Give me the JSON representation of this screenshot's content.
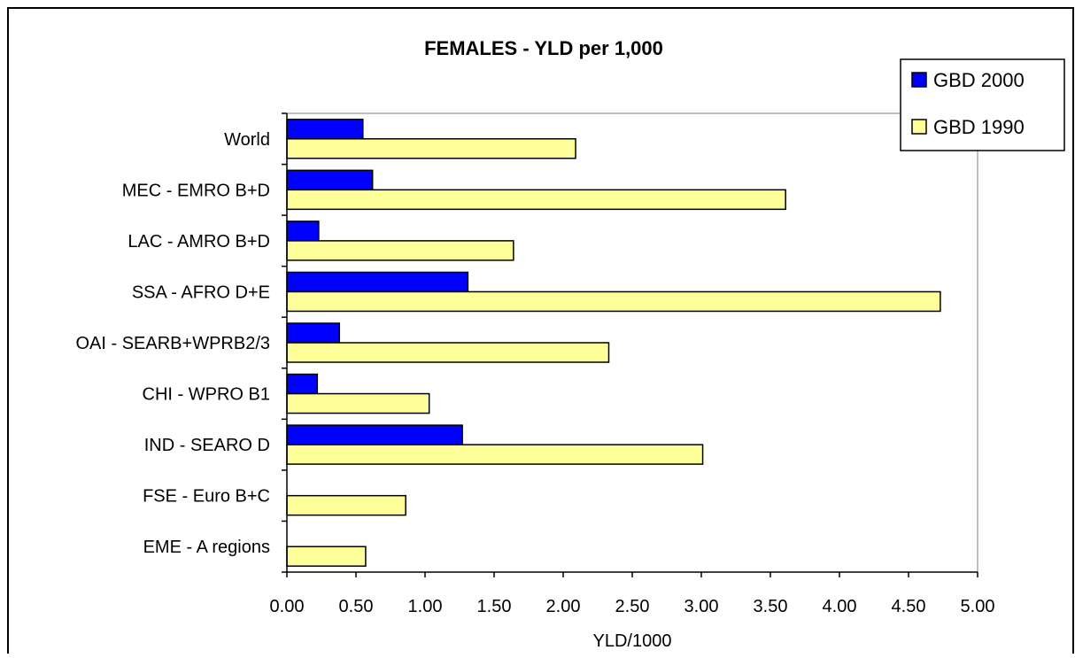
{
  "chart_data": {
    "type": "bar",
    "orientation": "horizontal",
    "title": "FEMALES - YLD per 1,000",
    "xlabel": "YLD/1000",
    "ylabel": "",
    "xlim": [
      0,
      5
    ],
    "x_ticks": [
      "0.00",
      "0.50",
      "1.00",
      "1.50",
      "2.00",
      "2.50",
      "3.00",
      "3.50",
      "4.00",
      "4.50",
      "5.00"
    ],
    "grid": false,
    "legend_position": "top-right",
    "categories": [
      "World",
      "MEC - EMRO B+D",
      "LAC - AMRO B+D",
      "SSA - AFRO D+E",
      "OAI - SEARB+WPRB2/3",
      "CHI - WPRO B1",
      "IND - SEARO D",
      "FSE - Euro B+C",
      "EME - A regions"
    ],
    "series": [
      {
        "name": "GBD 2000",
        "color": "#0000ff",
        "values": [
          0.55,
          0.62,
          0.23,
          1.31,
          0.38,
          0.22,
          1.27,
          null,
          null
        ]
      },
      {
        "name": "GBD 1990",
        "color": "#ffff99",
        "values": [
          2.09,
          3.61,
          1.64,
          4.73,
          2.33,
          1.03,
          3.01,
          0.86,
          0.57
        ]
      }
    ]
  }
}
